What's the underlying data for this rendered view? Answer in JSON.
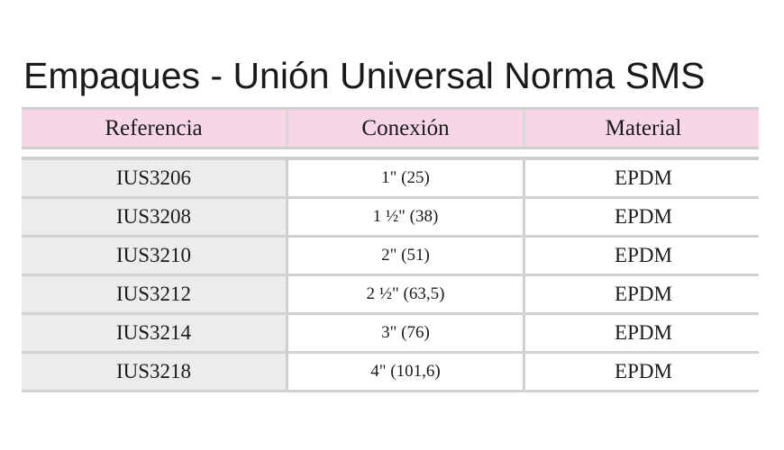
{
  "title": "Empaques - Unión Universal Norma SMS",
  "table": {
    "headers": [
      "Referencia",
      "Conexión",
      "Material"
    ],
    "rows": [
      {
        "ref": "IUS3206",
        "conexion": "1\" (25)",
        "material": "EPDM"
      },
      {
        "ref": "IUS3208",
        "conexion": "1 ½\" (38)",
        "material": "EPDM"
      },
      {
        "ref": "IUS3210",
        "conexion": "2\" (51)",
        "material": "EPDM"
      },
      {
        "ref": "IUS3212",
        "conexion": "2 ½\" (63,5)",
        "material": "EPDM"
      },
      {
        "ref": "IUS3214",
        "conexion": "3\" (76)",
        "material": "EPDM"
      },
      {
        "ref": "IUS3218",
        "conexion": "4\" (101,6)",
        "material": "EPDM"
      }
    ]
  }
}
